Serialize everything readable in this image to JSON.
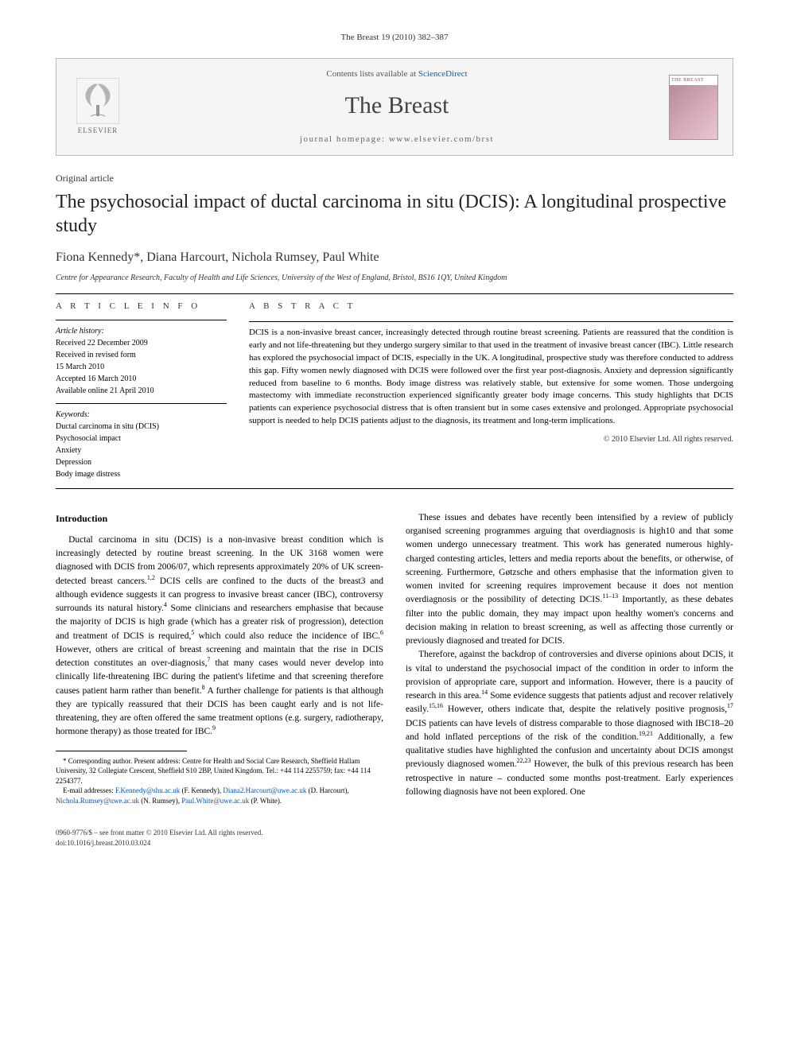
{
  "citation": "The Breast 19 (2010) 382–387",
  "header": {
    "contents_prefix": "Contents lists available at ",
    "contents_link": "ScienceDirect",
    "journal": "The Breast",
    "homepage_label": "journal homepage: ",
    "homepage_url": "www.elsevier.com/brst",
    "publisher": "ELSEVIER",
    "cover_title": "THE BREAST"
  },
  "article": {
    "type": "Original article",
    "title": "The psychosocial impact of ductal carcinoma in situ (DCIS): A longitudinal prospective study",
    "authors": "Fiona Kennedy*, Diana Harcourt, Nichola Rumsey, Paul White",
    "affiliation": "Centre for Appearance Research, Faculty of Health and Life Sciences, University of the West of England, Bristol, BS16 1QY, United Kingdom"
  },
  "info": {
    "header": "A R T I C L E   I N F O",
    "history_label": "Article history:",
    "received": "Received 22 December 2009",
    "revised": "Received in revised form",
    "revised_date": "15 March 2010",
    "accepted": "Accepted 16 March 2010",
    "online": "Available online 21 April 2010",
    "keywords_label": "Keywords:",
    "keywords": [
      "Ductal carcinoma in situ (DCIS)",
      "Psychosocial impact",
      "Anxiety",
      "Depression",
      "Body image distress"
    ]
  },
  "abstract": {
    "header": "A B S T R A C T",
    "text": "DCIS is a non-invasive breast cancer, increasingly detected through routine breast screening. Patients are reassured that the condition is early and not life-threatening but they undergo surgery similar to that used in the treatment of invasive breast cancer (IBC). Little research has explored the psychosocial impact of DCIS, especially in the UK. A longitudinal, prospective study was therefore conducted to address this gap. Fifty women newly diagnosed with DCIS were followed over the first year post-diagnosis. Anxiety and depression significantly reduced from baseline to 6 months. Body image distress was relatively stable, but extensive for some women. Those undergoing mastectomy with immediate reconstruction experienced significantly greater body image concerns. This study highlights that DCIS patients can experience psychosocial distress that is often transient but in some cases extensive and prolonged. Appropriate psychosocial support is needed to help DCIS patients adjust to the diagnosis, its treatment and long-term implications.",
    "copyright": "© 2010 Elsevier Ltd. All rights reserved."
  },
  "intro": {
    "heading": "Introduction",
    "para1": "Ductal carcinoma in situ (DCIS) is a non-invasive breast condition which is increasingly detected by routine breast screening. In the UK 3168 women were diagnosed with DCIS from 2006/07, which represents approximately 20% of UK screen-detected breast cancers.1,2 DCIS cells are confined to the ducts of the breast3 and although evidence suggests it can progress to invasive breast cancer (IBC), controversy surrounds its natural history.4 Some clinicians and researchers emphasise that because the majority of DCIS is high grade (which has a greater risk of progression), detection and treatment of DCIS is required,5 which could also reduce the incidence of IBC.6 However, others are critical of breast screening and maintain that the rise in DCIS detection constitutes an over-diagnosis,7 that many cases would never develop into clinically life-threatening IBC during the patient's lifetime and that screening therefore causes patient harm rather than benefit.8 A further challenge for patients is that although they are typically reassured that their DCIS has been caught early and is not life-threatening, they are often offered the same treatment options (e.g. surgery, radiotherapy, hormone therapy) as those treated for IBC.9",
    "para2": "These issues and debates have recently been intensified by a review of publicly organised screening programmes arguing that overdiagnosis is high10 and that some women undergo unnecessary treatment. This work has generated numerous highly-charged contesting articles, letters and media reports about the benefits, or otherwise, of screening. Furthermore, Gøtzsche and others emphasise that the information given to women invited for screening requires improvement because it does not mention overdiagnosis or the possibility of detecting DCIS.11–13 Importantly, as these debates filter into the public domain, they may impact upon healthy women's concerns and decision making in relation to breast screening, as well as affecting those currently or previously diagnosed and treated for DCIS.",
    "para3": "Therefore, against the backdrop of controversies and diverse opinions about DCIS, it is vital to understand the psychosocial impact of the condition in order to inform the provision of appropriate care, support and information. However, there is a paucity of research in this area.14 Some evidence suggests that patients adjust and recover relatively easily.15,16 However, others indicate that, despite the relatively positive prognosis,17 DCIS patients can have levels of distress comparable to those diagnosed with IBC18–20 and hold inflated perceptions of the risk of the condition.19,21 Additionally, a few qualitative studies have highlighted the confusion and uncertainty about DCIS amongst previously diagnosed women.22,23 However, the bulk of this previous research has been retrospective in nature – conducted some months post-treatment. Early experiences following diagnosis have not been explored. One"
  },
  "footnote": {
    "corr": "* Corresponding author. Present address: Centre for Health and Social Care Research, Sheffield Hallam University, 32 Collegiate Crescent, Sheffield S10 2BP, United Kingdom. Tel.: +44 114 2255759; fax: +44 114 2254377.",
    "emails_label": "E-mail addresses: ",
    "e1": "F.Kennedy@shu.ac.uk",
    "e1_who": " (F. Kennedy), ",
    "e2": "Diana2.Harcourt@uwe.ac.uk",
    "e2_who": " (D. Harcourt), ",
    "e3": "Nichola.Rumsey@uwe.ac.uk",
    "e3_who": " (N. Rumsey), ",
    "e4": "Paul.White@uwe.ac.uk",
    "e4_who": " (P. White)."
  },
  "footer": {
    "left1": "0960-9776/$ – see front matter © 2010 Elsevier Ltd. All rights reserved.",
    "left2": "doi:10.1016/j.breast.2010.03.024"
  },
  "colors": {
    "link": "#0066aa",
    "text": "#000000",
    "border": "#bcbcbc",
    "header_bg": "#f5f5f5"
  }
}
